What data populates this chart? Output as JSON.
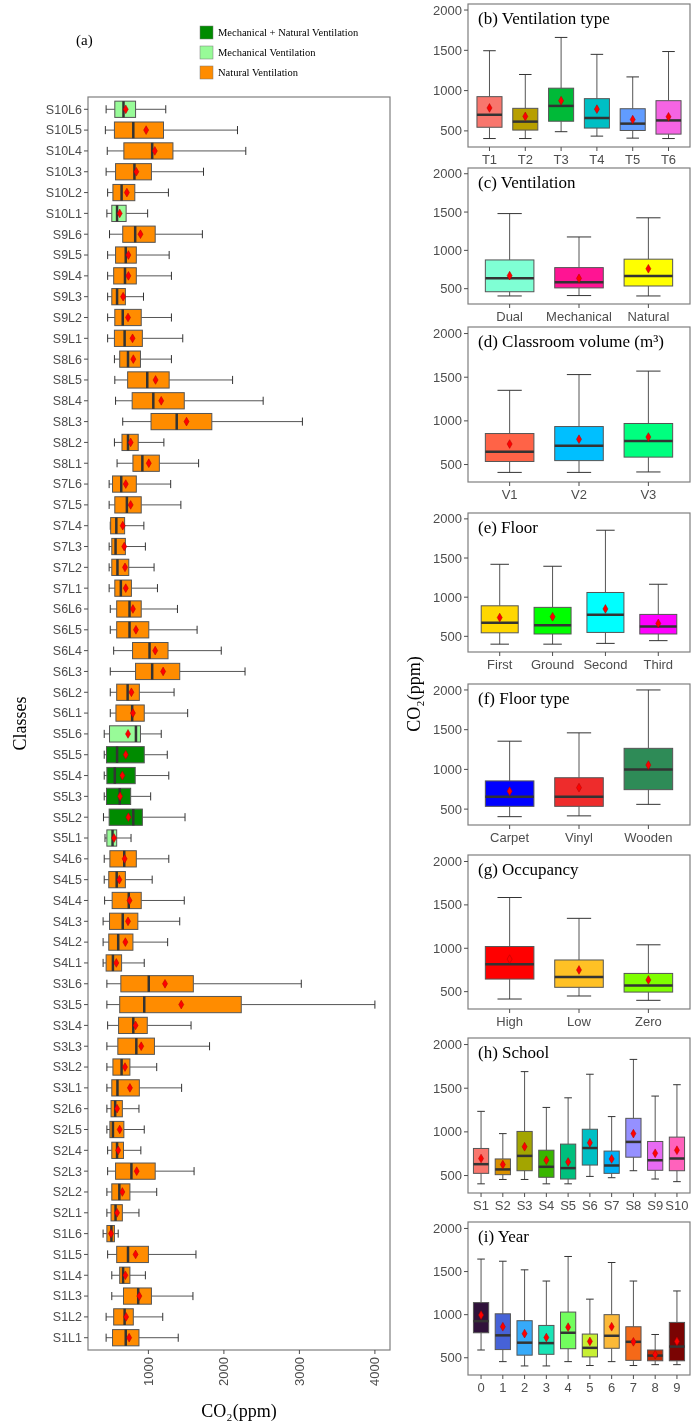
{
  "chart_data": [
    {
      "type": "box",
      "title": "(a)",
      "xlabel": "CO₂(ppm)",
      "ylabel": "Classes",
      "orientation": "horizontal",
      "legend": "top right",
      "xlim": [
        200,
        4200
      ],
      "xticks": [
        1000,
        2000,
        3000,
        4000
      ],
      "categories": [
        "S10L6",
        "S10L5",
        "S10L4",
        "S10L3",
        "S10L2",
        "S10L1",
        "S9L6",
        "S9L5",
        "S9L4",
        "S9L3",
        "S9L2",
        "S9L1",
        "S8L6",
        "S8L5",
        "S8L4",
        "S8L3",
        "S8L2",
        "S8L1",
        "S7L6",
        "S7L5",
        "S7L4",
        "S7L3",
        "S7L2",
        "S7L1",
        "S6L6",
        "S6L5",
        "S6L4",
        "S6L3",
        "S6L2",
        "S6L1",
        "S5L6",
        "S5L5",
        "S5L4",
        "S5L3",
        "S5L2",
        "S5L1",
        "S4L6",
        "S4L5",
        "S4L4",
        "S4L3",
        "S4L2",
        "S4L1",
        "S3L6",
        "S3L5",
        "S3L4",
        "S3L3",
        "S3L2",
        "S3L1",
        "S2L6",
        "S2L5",
        "S2L4",
        "S2L3",
        "S2L2",
        "S2L1",
        "S1L6",
        "S1L5",
        "S1L4",
        "S1L3",
        "S1L2",
        "S1L1"
      ],
      "series": [
        {
          "name": "Mechanical + Natural Ventilation",
          "color": "#008b00",
          "boxes": [
            null,
            null,
            null,
            null,
            null,
            null,
            null,
            null,
            null,
            null,
            null,
            null,
            null,
            null,
            null,
            null,
            null,
            null,
            null,
            null,
            null,
            null,
            null,
            null,
            null,
            null,
            null,
            null,
            null,
            null,
            null,
            {
              "low": 415,
              "q1": 445,
              "median": 585,
              "q3": 945,
              "high": 1250,
              "mean": 700
            },
            {
              "low": 415,
              "q1": 450,
              "median": 555,
              "q3": 825,
              "high": 1270,
              "mean": 655
            },
            {
              "low": 415,
              "q1": 445,
              "median": 620,
              "q3": 765,
              "high": 1030,
              "mean": 625
            },
            {
              "low": 405,
              "q1": 480,
              "median": 800,
              "q3": 920,
              "high": 1485,
              "mean": 735
            },
            null,
            null,
            null,
            null,
            null,
            null,
            null,
            null,
            null,
            null,
            null,
            null,
            null,
            null,
            null,
            null,
            null,
            null,
            null,
            null,
            null,
            null,
            null,
            null,
            null
          ]
        },
        {
          "name": "Mechanical Ventilation",
          "color": "#98fb98",
          "boxes": [
            {
              "low": 440,
              "q1": 555,
              "median": 670,
              "q3": 830,
              "high": 1230,
              "mean": 700
            },
            null,
            null,
            null,
            null,
            {
              "low": 450,
              "q1": 515,
              "median": 585,
              "q3": 705,
              "high": 990,
              "mean": 620
            },
            null,
            null,
            null,
            null,
            null,
            null,
            null,
            null,
            null,
            null,
            null,
            null,
            null,
            null,
            null,
            null,
            null,
            null,
            null,
            null,
            null,
            null,
            null,
            null,
            {
              "low": 415,
              "q1": 485,
              "median": 835,
              "q3": 895,
              "high": 1170,
              "mean": 730
            },
            null,
            null,
            null,
            null,
            {
              "low": 425,
              "q1": 450,
              "median": 525,
              "q3": 580,
              "high": 770,
              "mean": 545
            },
            null,
            null,
            null,
            null,
            null,
            null,
            null,
            null,
            null,
            null,
            null,
            null,
            null,
            null,
            null,
            null,
            null,
            null,
            null,
            null,
            null,
            null,
            null,
            null
          ]
        },
        {
          "name": "Natural Ventilation",
          "color": "#ff8c00",
          "boxes": [
            null,
            {
              "low": 430,
              "q1": 550,
              "median": 800,
              "q3": 1200,
              "high": 2180,
              "mean": 970
            },
            {
              "low": 455,
              "q1": 675,
              "median": 1050,
              "q3": 1325,
              "high": 2290,
              "mean": 1085
            },
            {
              "low": 440,
              "q1": 565,
              "median": 815,
              "q3": 1040,
              "high": 1730,
              "mean": 840
            },
            {
              "low": 460,
              "q1": 530,
              "median": 645,
              "q3": 820,
              "high": 1265,
              "mean": 715
            },
            null,
            {
              "low": 485,
              "q1": 660,
              "median": 825,
              "q3": 1090,
              "high": 1715,
              "mean": 895
            },
            {
              "low": 460,
              "q1": 565,
              "median": 700,
              "q3": 840,
              "high": 1275,
              "mean": 735
            },
            {
              "low": 460,
              "q1": 540,
              "median": 690,
              "q3": 840,
              "high": 1305,
              "mean": 735
            },
            {
              "low": 460,
              "q1": 515,
              "median": 585,
              "q3": 695,
              "high": 935,
              "mean": 665
            },
            {
              "low": 460,
              "q1": 555,
              "median": 660,
              "q3": 905,
              "high": 1305,
              "mean": 730
            },
            {
              "low": 460,
              "q1": 550,
              "median": 685,
              "q3": 920,
              "high": 1455,
              "mean": 790
            },
            {
              "low": 550,
              "q1": 620,
              "median": 730,
              "q3": 895,
              "high": 1305,
              "mean": 800
            },
            {
              "low": 555,
              "q1": 725,
              "median": 985,
              "q3": 1275,
              "high": 2115,
              "mean": 1095
            },
            {
              "low": 565,
              "q1": 785,
              "median": 1065,
              "q3": 1475,
              "high": 2520,
              "mean": 1170
            },
            {
              "low": 660,
              "q1": 1035,
              "median": 1375,
              "q3": 1840,
              "high": 3040,
              "mean": 1505
            },
            {
              "low": 550,
              "q1": 650,
              "median": 730,
              "q3": 865,
              "high": 1205,
              "mean": 765
            },
            {
              "low": 585,
              "q1": 795,
              "median": 920,
              "q3": 1145,
              "high": 1665,
              "mean": 1005
            },
            {
              "low": 480,
              "q1": 525,
              "median": 640,
              "q3": 840,
              "high": 1295,
              "mean": 700
            },
            {
              "low": 480,
              "q1": 555,
              "median": 715,
              "q3": 905,
              "high": 1430,
              "mean": 765
            },
            {
              "low": 495,
              "q1": 500,
              "median": 575,
              "q3": 685,
              "high": 940,
              "mean": 660
            },
            {
              "low": 480,
              "q1": 515,
              "median": 565,
              "q3": 695,
              "high": 960,
              "mean": 680
            },
            {
              "low": 480,
              "q1": 515,
              "median": 590,
              "q3": 740,
              "high": 1075,
              "mean": 690
            },
            {
              "low": 480,
              "q1": 555,
              "median": 635,
              "q3": 775,
              "high": 1120,
              "mean": 700
            },
            {
              "low": 495,
              "q1": 580,
              "median": 750,
              "q3": 905,
              "high": 1385,
              "mean": 795
            },
            {
              "low": 495,
              "q1": 580,
              "median": 750,
              "q3": 1005,
              "high": 1645,
              "mean": 835
            },
            {
              "low": 540,
              "q1": 790,
              "median": 1015,
              "q3": 1260,
              "high": 1965,
              "mean": 1090
            },
            {
              "low": 495,
              "q1": 830,
              "median": 1050,
              "q3": 1415,
              "high": 2280,
              "mean": 1195
            },
            {
              "low": 495,
              "q1": 580,
              "median": 725,
              "q3": 880,
              "high": 1340,
              "mean": 775
            },
            {
              "low": 495,
              "q1": 570,
              "median": 785,
              "q3": 945,
              "high": 1520,
              "mean": 795
            },
            null,
            null,
            null,
            null,
            null,
            null,
            {
              "low": 415,
              "q1": 490,
              "median": 680,
              "q3": 840,
              "high": 1270,
              "mean": 685
            },
            {
              "low": 415,
              "q1": 475,
              "median": 580,
              "q3": 695,
              "high": 1050,
              "mean": 615
            },
            {
              "low": 420,
              "q1": 520,
              "median": 740,
              "q3": 905,
              "high": 1475,
              "mean": 750
            },
            {
              "low": 400,
              "q1": 485,
              "median": 660,
              "q3": 860,
              "high": 1415,
              "mean": 730
            },
            {
              "low": 400,
              "q1": 475,
              "median": 600,
              "q3": 795,
              "high": 1255,
              "mean": 695
            },
            {
              "low": 400,
              "q1": 440,
              "median": 530,
              "q3": 645,
              "high": 945,
              "mean": 575
            },
            {
              "low": 450,
              "q1": 635,
              "median": 1005,
              "q3": 1595,
              "high": 3025,
              "mean": 1220
            },
            {
              "low": 450,
              "q1": 620,
              "median": 945,
              "q3": 2230,
              "high": 4000,
              "mean": 1435
            },
            {
              "low": 460,
              "q1": 605,
              "median": 800,
              "q3": 985,
              "high": 1565,
              "mean": 830
            },
            {
              "low": 450,
              "q1": 595,
              "median": 840,
              "q3": 1080,
              "high": 1810,
              "mean": 905
            },
            {
              "low": 450,
              "q1": 530,
              "median": 645,
              "q3": 755,
              "high": 1110,
              "mean": 690
            },
            {
              "low": 450,
              "q1": 515,
              "median": 590,
              "q3": 880,
              "high": 1440,
              "mean": 755
            },
            {
              "low": 450,
              "q1": 505,
              "median": 560,
              "q3": 655,
              "high": 875,
              "mean": 585
            },
            {
              "low": 450,
              "q1": 490,
              "median": 530,
              "q3": 675,
              "high": 945,
              "mean": 620
            },
            {
              "low": 460,
              "q1": 515,
              "median": 585,
              "q3": 670,
              "high": 900,
              "mean": 600
            },
            {
              "low": 460,
              "q1": 565,
              "median": 775,
              "q3": 1090,
              "high": 1605,
              "mean": 845
            },
            {
              "low": 450,
              "q1": 515,
              "median": 615,
              "q3": 755,
              "high": 1110,
              "mean": 655
            },
            {
              "low": 450,
              "q1": 505,
              "median": 565,
              "q3": 655,
              "high": 875,
              "mean": 585
            },
            {
              "low": 400,
              "q1": 450,
              "median": 510,
              "q3": 550,
              "high": 600,
              "mean": 505
            },
            {
              "low": 460,
              "q1": 580,
              "median": 730,
              "q3": 1000,
              "high": 1630,
              "mean": 830
            },
            {
              "low": 515,
              "q1": 620,
              "median": 665,
              "q3": 755,
              "high": 960,
              "mean": 695
            },
            {
              "low": 515,
              "q1": 670,
              "median": 865,
              "q3": 1040,
              "high": 1590,
              "mean": 880
            },
            {
              "low": 440,
              "q1": 540,
              "median": 685,
              "q3": 800,
              "high": 1190,
              "mean": 705
            },
            {
              "low": 440,
              "q1": 525,
              "median": 700,
              "q3": 875,
              "high": 1395,
              "mean": 745
            }
          ]
        }
      ]
    },
    {
      "type": "box",
      "title": "(b) Ventilation type",
      "ylim": [
        300,
        2075
      ],
      "yticks": [
        500,
        1000,
        1500,
        2000
      ],
      "categories": [
        "T1",
        "T2",
        "T3",
        "T4",
        "T5",
        "T6"
      ],
      "colors": [
        "#f8766d",
        "#b79f00",
        "#00ba38",
        "#00bfc4",
        "#619cff",
        "#f564e3"
      ],
      "boxes": [
        {
          "low": 405,
          "q1": 545,
          "median": 700,
          "q3": 925,
          "high": 1495,
          "mean": 785
        },
        {
          "low": 405,
          "q1": 510,
          "median": 615,
          "q3": 780,
          "high": 1200,
          "mean": 680
        },
        {
          "low": 490,
          "q1": 620,
          "median": 810,
          "q3": 1030,
          "high": 1660,
          "mean": 875
        },
        {
          "low": 435,
          "q1": 535,
          "median": 660,
          "q3": 900,
          "high": 1450,
          "mean": 770
        },
        {
          "low": 410,
          "q1": 505,
          "median": 590,
          "q3": 775,
          "high": 1170,
          "mean": 640
        },
        {
          "low": 405,
          "q1": 460,
          "median": 630,
          "q3": 875,
          "high": 1485,
          "mean": 675
        }
      ]
    },
    {
      "type": "box",
      "title": "(c) Ventilation",
      "ylim": [
        300,
        2075
      ],
      "yticks": [
        500,
        1000,
        1500,
        2000
      ],
      "categories": [
        "Dual",
        "Mechanical",
        "Natural"
      ],
      "colors": [
        "#7fffd4",
        "#ff1493",
        "#ffff00"
      ],
      "boxes": [
        {
          "low": 405,
          "q1": 460,
          "median": 635,
          "q3": 875,
          "high": 1480,
          "mean": 670
        },
        {
          "low": 410,
          "q1": 510,
          "median": 585,
          "q3": 775,
          "high": 1175,
          "mean": 635
        },
        {
          "low": 405,
          "q1": 535,
          "median": 665,
          "q3": 885,
          "high": 1425,
          "mean": 760
        }
      ]
    },
    {
      "type": "box",
      "title": "(d) Classroom volume (m³)",
      "ylim": [
        300,
        2075
      ],
      "yticks": [
        500,
        1000,
        1500,
        2000
      ],
      "categories": [
        "V1",
        "V2",
        "V3"
      ],
      "colors": [
        "#ff6347",
        "#00bfff",
        "#00ff7f"
      ],
      "boxes": [
        {
          "low": 410,
          "q1": 535,
          "median": 645,
          "q3": 855,
          "high": 1350,
          "mean": 735
        },
        {
          "low": 410,
          "q1": 545,
          "median": 715,
          "q3": 935,
          "high": 1530,
          "mean": 790
        },
        {
          "low": 415,
          "q1": 585,
          "median": 770,
          "q3": 970,
          "high": 1570,
          "mean": 815
        }
      ]
    },
    {
      "type": "box",
      "title": "(e) Floor",
      "ylim": [
        300,
        2075
      ],
      "yticks": [
        500,
        1000,
        1500,
        2000
      ],
      "categories": [
        "First",
        "Ground",
        "Second",
        "Third"
      ],
      "colors": [
        "#ffd700",
        "#00ff00",
        "#00ffff",
        "#ff00ff"
      ],
      "boxes": [
        {
          "low": 400,
          "q1": 545,
          "median": 675,
          "q3": 890,
          "high": 1420,
          "mean": 740
        },
        {
          "low": 400,
          "q1": 530,
          "median": 640,
          "q3": 870,
          "high": 1395,
          "mean": 750
        },
        {
          "low": 410,
          "q1": 550,
          "median": 775,
          "q3": 1060,
          "high": 1855,
          "mean": 850
        },
        {
          "low": 445,
          "q1": 530,
          "median": 625,
          "q3": 780,
          "high": 1165,
          "mean": 665
        }
      ]
    },
    {
      "type": "box",
      "title": "(f) Floor type",
      "ylabel": "CO₂(ppm)",
      "ylim": [
        300,
        2075
      ],
      "yticks": [
        500,
        1000,
        1500,
        2000
      ],
      "categories": [
        "Carpet",
        "Vinyl",
        "Wooden"
      ],
      "colors": [
        "#0000ff",
        "#ee2c2c",
        "#2e8b57"
      ],
      "boxes": [
        {
          "low": 405,
          "q1": 535,
          "median": 655,
          "q3": 855,
          "high": 1355,
          "mean": 725
        },
        {
          "low": 415,
          "q1": 535,
          "median": 655,
          "q3": 895,
          "high": 1460,
          "mean": 770
        },
        {
          "low": 560,
          "q1": 745,
          "median": 1000,
          "q3": 1265,
          "high": 2000,
          "mean": 1055
        }
      ]
    },
    {
      "type": "box",
      "title": "(g) Occupancy",
      "ylim": [
        300,
        2075
      ],
      "yticks": [
        500,
        1000,
        1500,
        2000
      ],
      "categories": [
        "High",
        "Low",
        "Zero"
      ],
      "colors": [
        "#ff0000",
        "#ffc125",
        "#7fff00"
      ],
      "boxes": [
        {
          "low": 415,
          "q1": 645,
          "median": 815,
          "q3": 1020,
          "high": 1585,
          "mean": 875
        },
        {
          "low": 450,
          "q1": 550,
          "median": 670,
          "q3": 865,
          "high": 1345,
          "mean": 750
        },
        {
          "low": 400,
          "q1": 495,
          "median": 570,
          "q3": 710,
          "high": 1040,
          "mean": 635
        }
      ]
    },
    {
      "type": "box",
      "title": "(h) School",
      "ylim": [
        300,
        2075
      ],
      "yticks": [
        500,
        1000,
        1500,
        2000
      ],
      "categories": [
        "S1",
        "S2",
        "S3",
        "S4",
        "S5",
        "S6",
        "S7",
        "S8",
        "S9",
        "S10"
      ],
      "colors": [
        "#f8766d",
        "#d89000",
        "#a3a500",
        "#39b600",
        "#00bf7d",
        "#00bfc4",
        "#00b0f6",
        "#9590ff",
        "#e76bf3",
        "#ff62bc"
      ],
      "boxes": [
        {
          "low": 405,
          "q1": 525,
          "median": 630,
          "q3": 810,
          "high": 1235,
          "mean": 695
        },
        {
          "low": 455,
          "q1": 510,
          "median": 570,
          "q3": 690,
          "high": 980,
          "mean": 625
        },
        {
          "low": 455,
          "q1": 555,
          "median": 725,
          "q3": 1005,
          "high": 1690,
          "mean": 830
        },
        {
          "low": 405,
          "q1": 480,
          "median": 600,
          "q3": 790,
          "high": 1280,
          "mean": 675
        },
        {
          "low": 405,
          "q1": 460,
          "median": 585,
          "q3": 860,
          "high": 1390,
          "mean": 655
        },
        {
          "low": 490,
          "q1": 620,
          "median": 815,
          "q3": 1030,
          "high": 1660,
          "mean": 875
        },
        {
          "low": 475,
          "q1": 525,
          "median": 615,
          "q3": 780,
          "high": 1175,
          "mean": 690
        },
        {
          "low": 555,
          "q1": 710,
          "median": 885,
          "q3": 1155,
          "high": 1830,
          "mean": 980
        },
        {
          "low": 460,
          "q1": 560,
          "median": 675,
          "q3": 890,
          "high": 1410,
          "mean": 755
        },
        {
          "low": 430,
          "q1": 555,
          "median": 695,
          "q3": 940,
          "high": 1540,
          "mean": 790
        }
      ]
    },
    {
      "type": "box",
      "title": "(i) Year",
      "ylim": [
        300,
        2075
      ],
      "yticks": [
        500,
        1000,
        1500,
        2000
      ],
      "categories": [
        "0",
        "1",
        "2",
        "3",
        "4",
        "5",
        "6",
        "7",
        "8",
        "9"
      ],
      "colors": [
        "#30123b",
        "#4662d7",
        "#36aaf9",
        "#1ae4b6",
        "#72fe5e",
        "#c7ef34",
        "#fbb938",
        "#f56918",
        "#c92903",
        "#7a0403"
      ],
      "boxes": [
        {
          "low": 590,
          "q1": 790,
          "median": 925,
          "q3": 1140,
          "high": 1645,
          "mean": 995
        },
        {
          "low": 455,
          "q1": 595,
          "median": 760,
          "q3": 1010,
          "high": 1620,
          "mean": 860
        },
        {
          "low": 405,
          "q1": 530,
          "median": 675,
          "q3": 930,
          "high": 1520,
          "mean": 780
        },
        {
          "low": 405,
          "q1": 540,
          "median": 670,
          "q3": 875,
          "high": 1390,
          "mean": 735
        },
        {
          "low": 455,
          "q1": 605,
          "median": 790,
          "q3": 1030,
          "high": 1675,
          "mean": 855
        },
        {
          "low": 410,
          "q1": 510,
          "median": 615,
          "q3": 775,
          "high": 1180,
          "mean": 690
        },
        {
          "low": 455,
          "q1": 610,
          "median": 755,
          "q3": 1000,
          "high": 1605,
          "mean": 860
        },
        {
          "low": 410,
          "q1": 470,
          "median": 685,
          "q3": 860,
          "high": 1390,
          "mean": 685
        },
        {
          "low": 420,
          "q1": 465,
          "median": 525,
          "q3": 590,
          "high": 770,
          "mean": 535
        },
        {
          "low": 420,
          "q1": 465,
          "median": 630,
          "q3": 910,
          "high": 1275,
          "mean": 690
        }
      ]
    }
  ]
}
